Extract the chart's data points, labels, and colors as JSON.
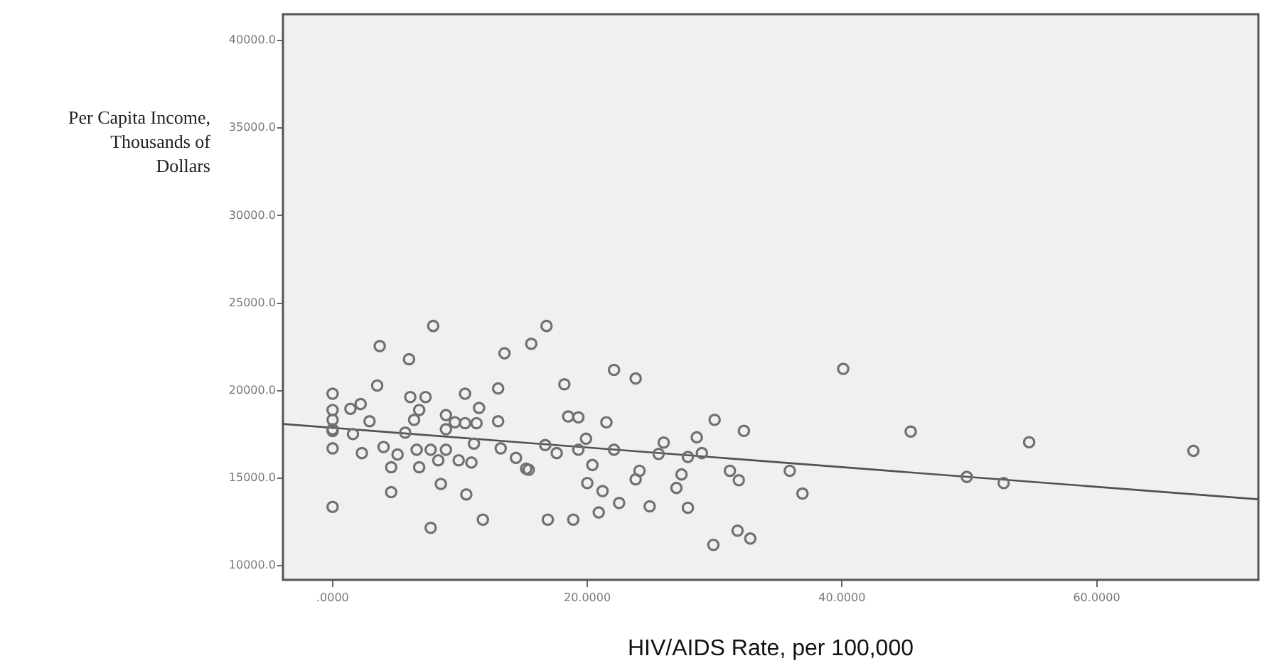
{
  "chart_data": {
    "type": "scatter",
    "xlabel": "HIV/AIDS Rate, per 100,000",
    "ylabel": "Per Capita Income, Thousands of Dollars",
    "xlim": [
      -3.9,
      72.7
    ],
    "xticks": [
      {
        "value": 0,
        "label": ".0000"
      },
      {
        "value": 20,
        "label": "20.0000"
      },
      {
        "value": 40,
        "label": "40.0000"
      },
      {
        "value": 60,
        "label": "60.0000"
      }
    ],
    "ylim": [
      9200,
      41500
    ],
    "yticks": [
      {
        "value": 10000,
        "label": "10000.0"
      },
      {
        "value": 15000,
        "label": "15000.0"
      },
      {
        "value": 20000,
        "label": "20000.0"
      },
      {
        "value": 25000,
        "label": "25000.0"
      },
      {
        "value": 30000,
        "label": "30000.0"
      },
      {
        "value": 35000,
        "label": "35000.0"
      },
      {
        "value": 40000,
        "label": "40000.0"
      }
    ],
    "grid": false,
    "legend": false,
    "marker": "circle",
    "series": [
      {
        "color": "#707070",
        "x": [
          7.9,
          3.7,
          6.0,
          3.5,
          0,
          6.1,
          7.3,
          10.4,
          13,
          2.2,
          1.4,
          0,
          0,
          0,
          2.9,
          6.8,
          6.4,
          11.5,
          8.9,
          9.6,
          10.4,
          11.3,
          13,
          1.6,
          0,
          5.7,
          8.9,
          0,
          2.3,
          4.0,
          5.1,
          6.6,
          7.7,
          8.9,
          11.1,
          13.2,
          14.4,
          15.2,
          4.6,
          6.8,
          8.3,
          9.9,
          10.9,
          8.5,
          10.5,
          4.6,
          0,
          11.8,
          7.7,
          15.6,
          16.8,
          13.5,
          22.1,
          23.8,
          18.2,
          18.5,
          19.3,
          21.5,
          30.0,
          32.3,
          28.6,
          19.9,
          26.0,
          16.7,
          17.6,
          19.3,
          22.1,
          25.6,
          27.9,
          29.0,
          15.4,
          20.4,
          24.1,
          23.8,
          27.4,
          27.0,
          31.2,
          31.9,
          35.9,
          36.9,
          20.0,
          21.2,
          22.5,
          16.9,
          18.9,
          20.9,
          24.9,
          27.9,
          31.8,
          32.8,
          29.9,
          40.1,
          45.4,
          54.7,
          67.6,
          49.8,
          52.7
        ],
        "values": [
          23700,
          22550,
          21800,
          20300,
          19830,
          19640,
          19640,
          19830,
          20130,
          19240,
          18970,
          18900,
          18340,
          17800,
          18260,
          18900,
          18340,
          19020,
          18610,
          18200,
          18150,
          18150,
          18260,
          17530,
          17700,
          17610,
          17800,
          16710,
          16440,
          16790,
          16360,
          16630,
          16630,
          16630,
          16980,
          16710,
          16170,
          15550,
          15630,
          15630,
          16030,
          16030,
          15900,
          14680,
          14080,
          14210,
          13370,
          12640,
          12170,
          22680,
          23700,
          22140,
          21190,
          20700,
          20370,
          18530,
          18480,
          18200,
          18340,
          17710,
          17340,
          17260,
          17040,
          16900,
          16440,
          16630,
          16630,
          16390,
          16220,
          16440,
          15490,
          15760,
          15430,
          14940,
          15220,
          14450,
          15430,
          14890,
          15430,
          14130,
          14730,
          14270,
          13590,
          12640,
          12640,
          13050,
          13400,
          13320,
          12010,
          11560,
          11200,
          21250,
          17670,
          17060,
          16570,
          15080,
          14730
        ]
      },
      {
        "type": "line",
        "color": "#505050",
        "marker": "none",
        "line_style": "solid",
        "x": [
          -3.9,
          72.7
        ],
        "values": [
          18100,
          13800
        ]
      }
    ]
  }
}
